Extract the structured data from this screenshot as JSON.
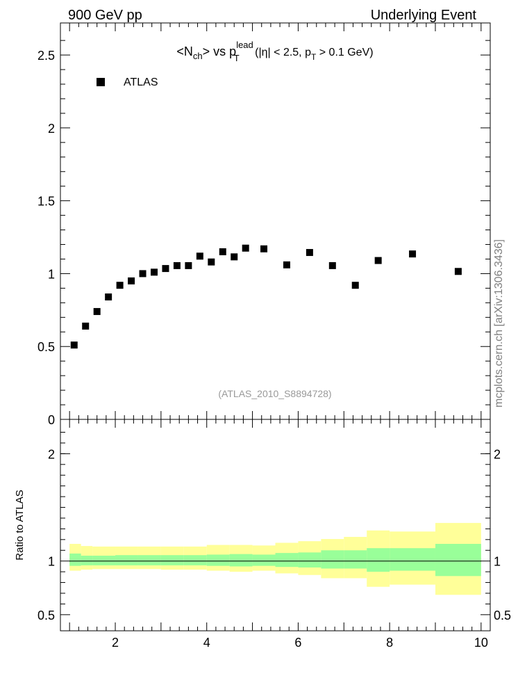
{
  "header": {
    "left": "900 GeV pp",
    "right": "Underlying Event"
  },
  "side_label": "mcplots.cern.ch [arXiv:1306.3436]",
  "colors": {
    "band_outer": "#ffff99",
    "band_inner": "#99ff99",
    "marker": "#000000",
    "watermark": "#808080"
  },
  "chart_data": [
    {
      "type": "scatter",
      "title": {
        "t1": "<N",
        "t_sub": "ch",
        "t2": "> vs p",
        "t_sup": "lead",
        "t_sub2": "T",
        "t3": " (|η| < 2.5, p",
        "t_sub3": "T",
        "t4": " > 0.1 GeV)"
      },
      "watermark": "(ATLAS_2010_S8894728)",
      "legend": [
        {
          "name": "ATLAS",
          "marker": "square",
          "position": "top-left"
        }
      ],
      "xlim": [
        0.8,
        10.2
      ],
      "ylim": [
        0,
        2.72
      ],
      "y_ticks": [
        {
          "v": 0.5,
          "label": "0.5"
        },
        {
          "v": 1,
          "label": "1"
        },
        {
          "v": 1.5,
          "label": "1.5"
        },
        {
          "v": 2,
          "label": "2"
        },
        {
          "v": 2.5,
          "label": "2.5"
        },
        {
          "v": 0,
          "label": "0"
        }
      ],
      "series": [
        {
          "name": "ATLAS",
          "x": [
            1.1,
            1.35,
            1.6,
            1.85,
            2.1,
            2.35,
            2.6,
            2.85,
            3.1,
            3.35,
            3.6,
            3.85,
            4.1,
            4.35,
            4.6,
            4.85,
            5.25,
            5.75,
            6.25,
            6.75,
            7.25,
            7.75,
            8.5,
            9.5
          ],
          "y": [
            0.51,
            0.64,
            0.74,
            0.84,
            0.92,
            0.95,
            1.0,
            1.01,
            1.035,
            1.055,
            1.055,
            1.12,
            1.08,
            1.15,
            1.115,
            1.175,
            1.17,
            1.06,
            1.145,
            1.055,
            0.92,
            1.09,
            1.135,
            1.015
          ]
        }
      ]
    },
    {
      "type": "area",
      "ylabel": "Ratio to ATLAS",
      "xlim": [
        0.8,
        10.2
      ],
      "ylim": [
        0.35,
        2.32
      ],
      "x_ticks": [
        {
          "v": 2,
          "label": "2"
        },
        {
          "v": 4,
          "label": "4"
        },
        {
          "v": 6,
          "label": "6"
        },
        {
          "v": 8,
          "label": "8"
        },
        {
          "v": 10,
          "label": "10"
        }
      ],
      "y_ticks": [
        {
          "v": 0.5,
          "label": "0.5"
        },
        {
          "v": 1,
          "label": "1"
        },
        {
          "v": 2,
          "label": "2"
        }
      ],
      "bins": [
        {
          "lo": 1.0,
          "hi": 1.25,
          "inner": [
            0.955,
            1.07
          ],
          "outer": [
            0.91,
            1.16
          ]
        },
        {
          "lo": 1.25,
          "hi": 1.5,
          "inner": [
            0.96,
            1.05
          ],
          "outer": [
            0.92,
            1.14
          ]
        },
        {
          "lo": 1.5,
          "hi": 2.0,
          "inner": [
            0.96,
            1.05
          ],
          "outer": [
            0.925,
            1.135
          ]
        },
        {
          "lo": 2.0,
          "hi": 2.5,
          "inner": [
            0.96,
            1.055
          ],
          "outer": [
            0.925,
            1.135
          ]
        },
        {
          "lo": 2.5,
          "hi": 3.0,
          "inner": [
            0.96,
            1.055
          ],
          "outer": [
            0.925,
            1.135
          ]
        },
        {
          "lo": 3.0,
          "hi": 3.5,
          "inner": [
            0.96,
            1.055
          ],
          "outer": [
            0.92,
            1.135
          ]
        },
        {
          "lo": 3.5,
          "hi": 4.0,
          "inner": [
            0.96,
            1.055
          ],
          "outer": [
            0.92,
            1.135
          ]
        },
        {
          "lo": 4.0,
          "hi": 4.5,
          "inner": [
            0.955,
            1.06
          ],
          "outer": [
            0.91,
            1.15
          ]
        },
        {
          "lo": 4.5,
          "hi": 5.0,
          "inner": [
            0.95,
            1.065
          ],
          "outer": [
            0.9,
            1.15
          ]
        },
        {
          "lo": 5.0,
          "hi": 5.5,
          "inner": [
            0.955,
            1.06
          ],
          "outer": [
            0.91,
            1.145
          ]
        },
        {
          "lo": 5.5,
          "hi": 6.0,
          "inner": [
            0.945,
            1.075
          ],
          "outer": [
            0.885,
            1.17
          ]
        },
        {
          "lo": 6.0,
          "hi": 6.5,
          "inner": [
            0.94,
            1.08
          ],
          "outer": [
            0.87,
            1.185
          ]
        },
        {
          "lo": 6.5,
          "hi": 7.0,
          "inner": [
            0.93,
            1.1
          ],
          "outer": [
            0.84,
            1.205
          ]
        },
        {
          "lo": 7.0,
          "hi": 7.5,
          "inner": [
            0.93,
            1.1
          ],
          "outer": [
            0.84,
            1.225
          ]
        },
        {
          "lo": 7.5,
          "hi": 8.0,
          "inner": [
            0.9,
            1.12
          ],
          "outer": [
            0.76,
            1.285
          ]
        },
        {
          "lo": 8.0,
          "hi": 9.0,
          "inner": [
            0.91,
            1.12
          ],
          "outer": [
            0.78,
            1.275
          ]
        },
        {
          "lo": 9.0,
          "hi": 10.0,
          "inner": [
            0.86,
            1.16
          ],
          "outer": [
            0.685,
            1.355
          ]
        }
      ],
      "reference_line": 1
    }
  ]
}
